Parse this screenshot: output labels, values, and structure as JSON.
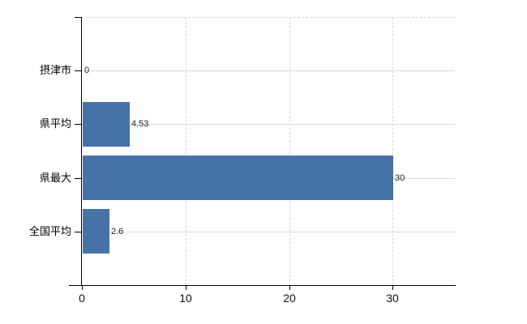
{
  "chart": {
    "background_color": "#ffffff",
    "bar_color": "#4572a7",
    "axis_color": "#000000",
    "h_grid_color": "#d5dbd2",
    "v_grid_color": "#d9d9d9",
    "category_label_color": "#000000",
    "value_label_color": "#222222",
    "tick_label_color": "#111111"
  },
  "chart_data": {
    "type": "bar",
    "orientation": "horizontal",
    "title": "",
    "xlabel": "",
    "ylabel": "",
    "categories": [
      "摂津市",
      "県平均",
      "県最大",
      "全国平均"
    ],
    "values": [
      0,
      4.53,
      30,
      2.6
    ],
    "value_labels": [
      "0",
      "4.53",
      "30",
      "2.6"
    ],
    "x_ticks": [
      0,
      10,
      20,
      30
    ],
    "x_tick_labels": [
      "0",
      "10",
      "20",
      "30"
    ],
    "xlim": [
      0,
      36
    ],
    "grid": true,
    "legend": false
  }
}
